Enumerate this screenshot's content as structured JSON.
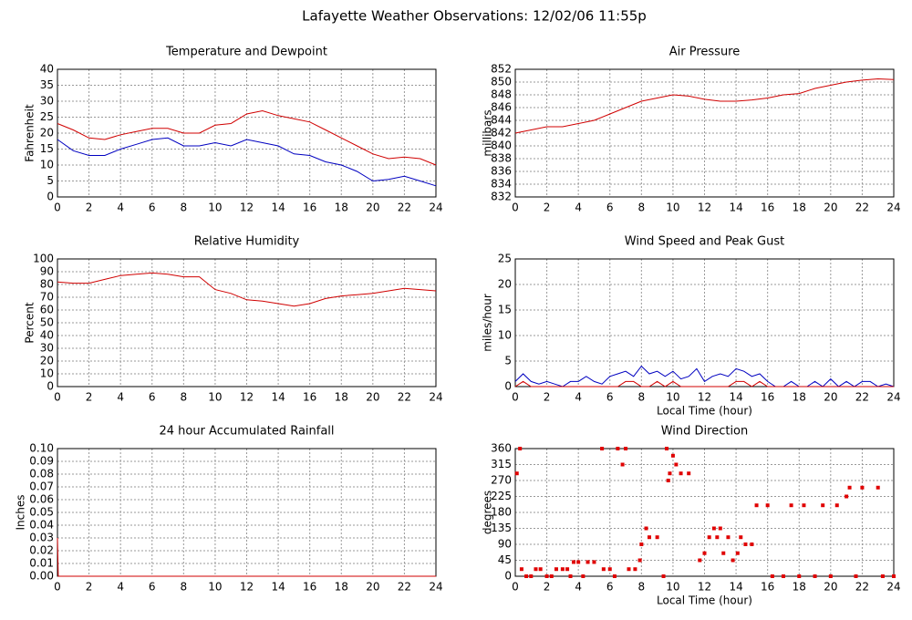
{
  "title": "Lafayette Weather Observations: 12/02/06 11:55p",
  "chart_data": [
    {
      "type": "line",
      "title": "Temperature and Dewpoint",
      "ylabel": "Fahrenheit",
      "x": [
        0,
        1,
        2,
        3,
        4,
        5,
        6,
        7,
        8,
        9,
        10,
        11,
        12,
        13,
        14,
        15,
        16,
        17,
        18,
        19,
        20,
        21,
        22,
        23,
        24
      ],
      "series": [
        {
          "color": "#d00000",
          "values": [
            23,
            21,
            18.5,
            18,
            19.5,
            20.5,
            21.5,
            21.5,
            20,
            20,
            22.5,
            23,
            26,
            27,
            25.5,
            24.5,
            23.5,
            21,
            18.5,
            16,
            13.5,
            12,
            12.5,
            12,
            10
          ]
        },
        {
          "color": "#0000c0",
          "values": [
            18,
            14.5,
            13,
            13,
            15,
            16.5,
            18,
            18.5,
            16,
            16,
            17,
            16,
            18,
            17,
            16,
            13.5,
            13,
            11,
            10,
            8,
            5,
            5.5,
            6.5,
            5,
            3.5
          ]
        }
      ],
      "xlim": [
        0,
        24
      ],
      "xticks": [
        0,
        2,
        4,
        6,
        8,
        10,
        12,
        14,
        16,
        18,
        20,
        22,
        24
      ],
      "ylim": [
        0,
        40
      ],
      "yticks": [
        0,
        5,
        10,
        15,
        20,
        25,
        30,
        35,
        40
      ],
      "grid": true
    },
    {
      "type": "line",
      "title": "Air Pressure",
      "ylabel": "millibars",
      "x": [
        0,
        1,
        2,
        3,
        4,
        5,
        6,
        7,
        8,
        9,
        10,
        11,
        12,
        13,
        14,
        15,
        16,
        17,
        18,
        19,
        20,
        21,
        22,
        23,
        24
      ],
      "series": [
        {
          "color": "#d00000",
          "values": [
            842,
            842.5,
            843,
            843,
            843.5,
            844,
            845,
            846,
            847,
            847.5,
            848,
            847.8,
            847.3,
            847,
            847,
            847.2,
            847.5,
            848,
            848.2,
            849,
            849.5,
            850,
            850.3,
            850.5,
            850.4
          ]
        }
      ],
      "xlim": [
        0,
        24
      ],
      "xticks": [
        0,
        2,
        4,
        6,
        8,
        10,
        12,
        14,
        16,
        18,
        20,
        22,
        24
      ],
      "ylim": [
        832,
        852
      ],
      "yticks": [
        832,
        834,
        836,
        838,
        840,
        842,
        844,
        846,
        848,
        850,
        852
      ],
      "grid": true
    },
    {
      "type": "line",
      "title": "Relative Humidity",
      "ylabel": "Percent",
      "x": [
        0,
        1,
        2,
        3,
        4,
        5,
        6,
        7,
        8,
        9,
        10,
        11,
        12,
        13,
        14,
        15,
        16,
        17,
        18,
        19,
        20,
        21,
        22,
        23,
        24
      ],
      "series": [
        {
          "color": "#d00000",
          "values": [
            82,
            81,
            81,
            84,
            87,
            88,
            89,
            88,
            86,
            86,
            76,
            73,
            68,
            67,
            65,
            63,
            65,
            69,
            71,
            72,
            73,
            75,
            77,
            76,
            75
          ]
        }
      ],
      "xlim": [
        0,
        24
      ],
      "xticks": [
        0,
        2,
        4,
        6,
        8,
        10,
        12,
        14,
        16,
        18,
        20,
        22,
        24
      ],
      "ylim": [
        0,
        100
      ],
      "yticks": [
        0,
        10,
        20,
        30,
        40,
        50,
        60,
        70,
        80,
        90,
        100
      ],
      "grid": true
    },
    {
      "type": "line",
      "title": "Wind Speed and Peak Gust",
      "ylabel": "miles/hour",
      "xlabel": "Local Time (hour)",
      "x": [
        0,
        0.5,
        1,
        1.5,
        2,
        2.5,
        3,
        3.5,
        4,
        4.5,
        5,
        5.5,
        6,
        6.5,
        7,
        7.5,
        8,
        8.5,
        9,
        9.5,
        10,
        10.5,
        11,
        11.5,
        12,
        12.5,
        13,
        13.5,
        14,
        14.5,
        15,
        15.5,
        16,
        16.5,
        17,
        17.5,
        18,
        18.5,
        19,
        19.5,
        20,
        20.5,
        21,
        21.5,
        22,
        22.5,
        23,
        23.5,
        24
      ],
      "series": [
        {
          "color": "#0000c0",
          "values": [
            1,
            2.5,
            1,
            0.5,
            1,
            0.5,
            0,
            1,
            1,
            2,
            1,
            0.5,
            2,
            2.5,
            3,
            2,
            4,
            2.5,
            3,
            2,
            3,
            1.5,
            2,
            3.5,
            1,
            2,
            2.5,
            2,
            3.5,
            3,
            2,
            2.5,
            1,
            0,
            0,
            1,
            0,
            0,
            1,
            0,
            1.5,
            0,
            1,
            0,
            1,
            1,
            0,
            0.5,
            0
          ]
        },
        {
          "color": "#d00000",
          "values": [
            0,
            1,
            0,
            0,
            0,
            0,
            0,
            0,
            0,
            0,
            0,
            0,
            0,
            0,
            1,
            1,
            0,
            0,
            1,
            0,
            1,
            0,
            0,
            0,
            0,
            0,
            0,
            0,
            1,
            1,
            0,
            1,
            0,
            0,
            0,
            0,
            0,
            0,
            0,
            0,
            0,
            0,
            0,
            0,
            0,
            0,
            0,
            0,
            0
          ]
        }
      ],
      "xlim": [
        0,
        24
      ],
      "xticks": [
        0,
        2,
        4,
        6,
        8,
        10,
        12,
        14,
        16,
        18,
        20,
        22,
        24
      ],
      "ylim": [
        0,
        25
      ],
      "yticks": [
        0,
        5,
        10,
        15,
        20,
        25
      ],
      "grid": true
    },
    {
      "type": "line",
      "title": "24 hour Accumulated Rainfall",
      "ylabel": "Inches",
      "x": [
        0,
        0.05,
        1,
        2,
        3,
        4,
        5,
        6,
        7,
        8,
        9,
        10,
        11,
        12,
        13,
        14,
        15,
        16,
        17,
        18,
        19,
        20,
        21,
        22,
        23,
        24
      ],
      "series": [
        {
          "color": "#d00000",
          "values": [
            0.03,
            0,
            0,
            0,
            0,
            0,
            0,
            0,
            0,
            0,
            0,
            0,
            0,
            0,
            0,
            0,
            0,
            0,
            0,
            0,
            0,
            0,
            0,
            0,
            0,
            0
          ]
        }
      ],
      "xlim": [
        0,
        24
      ],
      "xticks": [
        0,
        2,
        4,
        6,
        8,
        10,
        12,
        14,
        16,
        18,
        20,
        22,
        24
      ],
      "ylim": [
        0,
        0.1
      ],
      "yticks": [
        {
          "value": 0,
          "label": "0.00"
        },
        {
          "value": 0.01,
          "label": "0.01"
        },
        {
          "value": 0.02,
          "label": "0.02"
        },
        {
          "value": 0.03,
          "label": "0.03"
        },
        {
          "value": 0.04,
          "label": "0.04"
        },
        {
          "value": 0.05,
          "label": "0.05"
        },
        {
          "value": 0.06,
          "label": "0.06"
        },
        {
          "value": 0.07,
          "label": "0.07"
        },
        {
          "value": 0.08,
          "label": "0.08"
        },
        {
          "value": 0.09,
          "label": "0.09"
        },
        {
          "value": 0.1,
          "label": "0.10"
        }
      ],
      "grid": true
    },
    {
      "type": "scatter",
      "title": "Wind Direction",
      "ylabel": "degrees",
      "xlabel": "Local Time (hour)",
      "color": "#e00000",
      "x": [
        0.1,
        0.3,
        0.4,
        0.7,
        1.0,
        1.3,
        1.6,
        2.0,
        2.3,
        2.6,
        3.0,
        3.3,
        3.5,
        3.7,
        4.0,
        4.3,
        4.6,
        5.0,
        5.5,
        5.6,
        6.0,
        6.3,
        6.5,
        6.8,
        7.0,
        7.2,
        7.6,
        7.9,
        8.0,
        8.3,
        8.5,
        9.0,
        9.4,
        9.6,
        9.7,
        9.8,
        10.0,
        10.2,
        10.5,
        11,
        11.7,
        12.0,
        12.3,
        12.6,
        12.8,
        13.0,
        13.2,
        13.5,
        13.8,
        14.1,
        14.3,
        14.6,
        15.0,
        15.3,
        16,
        16.3,
        17,
        17.5,
        18,
        18.3,
        19,
        19.5,
        20,
        20.4,
        21,
        21.2,
        21.6,
        22,
        23,
        23.3,
        24
      ],
      "values": [
        290,
        360,
        20,
        0,
        0,
        20,
        20,
        0,
        0,
        20,
        20,
        20,
        0,
        40,
        40,
        0,
        40,
        40,
        360,
        20,
        20,
        0,
        360,
        315,
        360,
        20,
        20,
        45,
        90,
        135,
        110,
        110,
        0,
        360,
        270,
        290,
        340,
        315,
        290,
        290,
        45,
        65,
        110,
        135,
        110,
        135,
        65,
        110,
        45,
        65,
        110,
        90,
        90,
        200,
        200,
        0,
        0,
        200,
        0,
        200,
        0,
        200,
        0,
        200,
        225,
        250,
        0,
        250,
        250,
        0,
        0
      ],
      "xlim": [
        0,
        24
      ],
      "xticks": [
        0,
        2,
        4,
        6,
        8,
        10,
        12,
        14,
        16,
        18,
        20,
        22,
        24
      ],
      "ylim": [
        0,
        360
      ],
      "yticks": [
        0,
        45,
        90,
        135,
        180,
        225,
        270,
        315,
        360
      ],
      "grid": true
    }
  ]
}
